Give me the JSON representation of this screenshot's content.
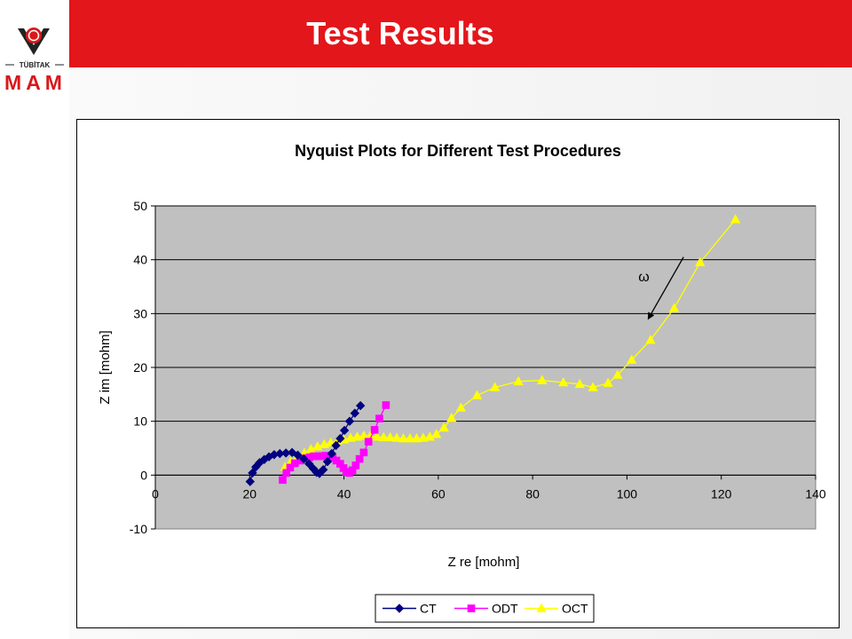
{
  "slide": {
    "title": "Test Results",
    "logo_text": "TÜBİTAK",
    "logo_sub": "MAM",
    "colors": {
      "title_bar": "#e3161b",
      "logo_red": "#d7191c",
      "logo_dark": "#222222"
    }
  },
  "chart_data": {
    "type": "scatter",
    "title": "Nyquist Plots for Different Test Procedures",
    "xlabel": "Z re [mohm]",
    "ylabel": "Z im [mohm]",
    "xlim": [
      0,
      140
    ],
    "ylim": [
      -10,
      50
    ],
    "xticks": [
      0,
      20,
      40,
      60,
      80,
      100,
      120,
      140
    ],
    "yticks": [
      -10,
      0,
      10,
      20,
      30,
      40,
      50
    ],
    "grid": "horizontal",
    "legend_position": "bottom",
    "plot_background": "#c0c0c0",
    "annotation": {
      "text": "ω",
      "arrow_from": [
        112,
        40.5
      ],
      "arrow_to": [
        104.5,
        29
      ]
    },
    "series": [
      {
        "name": "CT",
        "color": "#000080",
        "marker": "diamond",
        "x": [
          20.1,
          20.6,
          21.3,
          22.1,
          23.1,
          24.1,
          25.2,
          26.4,
          27.7,
          29.0,
          30.2,
          31.5,
          32.6,
          33.5,
          34.2,
          34.8,
          35.6,
          36.5,
          37.4,
          38.3,
          39.2,
          40.1,
          41.2,
          42.3,
          43.5
        ],
        "y": [
          -1.2,
          0.4,
          1.5,
          2.3,
          2.9,
          3.4,
          3.8,
          4.0,
          4.1,
          4.2,
          3.7,
          3.0,
          2.1,
          1.2,
          0.5,
          0.3,
          1.0,
          2.5,
          4.0,
          5.5,
          6.8,
          8.3,
          10.0,
          11.5,
          12.9
        ]
      },
      {
        "name": "ODT",
        "color": "#ff00ff",
        "marker": "square",
        "x": [
          27.0,
          27.8,
          28.6,
          29.6,
          30.7,
          31.7,
          32.7,
          33.6,
          34.5,
          35.3,
          36.1,
          36.8,
          37.6,
          38.4,
          39.2,
          39.9,
          40.5,
          41.1,
          41.8,
          42.5,
          43.3,
          44.2,
          45.2,
          46.5,
          47.5,
          48.9
        ],
        "y": [
          -0.9,
          0.4,
          1.4,
          2.2,
          2.7,
          3.1,
          3.3,
          3.5,
          3.5,
          3.5,
          3.6,
          3.5,
          3.2,
          2.7,
          2.1,
          1.3,
          0.6,
          0.4,
          0.9,
          1.8,
          3.0,
          4.2,
          6.2,
          8.4,
          10.5,
          13.0
        ]
      },
      {
        "name": "OCT",
        "color": "#ffff00",
        "marker": "triangle",
        "x": [
          27.5,
          28.7,
          30.1,
          31.6,
          33.0,
          34.4,
          35.8,
          37.2,
          38.6,
          40.0,
          41.4,
          42.8,
          44.2,
          45.6,
          47.0,
          48.4,
          49.8,
          51.2,
          52.6,
          54.0,
          55.4,
          56.8,
          58.2,
          59.6,
          61.2,
          62.8,
          64.8,
          68.2,
          72.0,
          77.0,
          82.0,
          86.5,
          90.0,
          92.8,
          96.0,
          98.0,
          101.0,
          105.0,
          110.0,
          115.5,
          123.0
        ],
        "y": [
          1.5,
          2.5,
          3.4,
          4.1,
          4.8,
          5.3,
          5.7,
          6.0,
          6.3,
          6.6,
          6.9,
          7.1,
          7.3,
          7.3,
          7.1,
          7.0,
          7.0,
          6.9,
          6.8,
          6.8,
          6.8,
          6.9,
          7.1,
          7.6,
          8.8,
          10.6,
          12.5,
          14.8,
          16.3,
          17.4,
          17.6,
          17.2,
          16.9,
          16.3,
          17.1,
          18.6,
          21.4,
          25.1,
          31.0,
          39.5,
          47.5
        ]
      }
    ]
  }
}
